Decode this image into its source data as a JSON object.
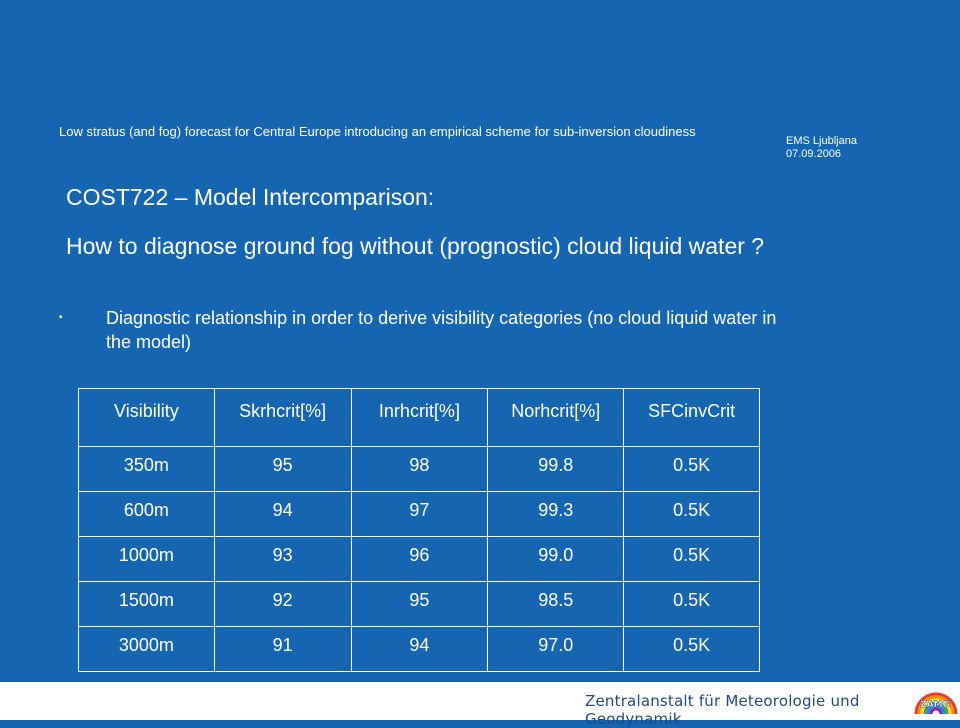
{
  "header": {
    "title": "Low stratus (and fog) forecast for Central Europe introducing an empirical scheme for sub-inversion cloudiness",
    "event_line1": "EMS Ljubljana",
    "event_line2": "07.09.2006"
  },
  "slide": {
    "heading1": "COST722 – Model Intercomparison:",
    "heading2": "How to diagnose ground fog without (prognostic) cloud liquid water ?",
    "bullet": "Diagnostic relationship in order to derive visibility categories (no cloud liquid water in the model)",
    "bullet_marker": "▪"
  },
  "table": {
    "headers": [
      "Visibility",
      "Skrhcrit[%]",
      "Inrhcrit[%]",
      "Norhcrit[%]",
      "SFCinvCrit"
    ],
    "rows": [
      [
        "350m",
        "95",
        "98",
        "99.8",
        "0.5K"
      ],
      [
        "600m",
        "94",
        "97",
        "99.3",
        "0.5K"
      ],
      [
        "1000m",
        "93",
        "96",
        "99.0",
        "0.5K"
      ],
      [
        "1500m",
        "92",
        "95",
        "98.5",
        "0.5K"
      ],
      [
        "3000m",
        "91",
        "94",
        "97.0",
        "0.5K"
      ]
    ]
  },
  "footer": {
    "institute": "Zentralanstalt für Meteorologie und Geodynamik",
    "logo_text": "ZAMG",
    "logo_icon": "rainbow-logo-icon"
  },
  "colors": {
    "background": "#1565b0",
    "text": "#ffffff",
    "footer_text": "#1f4a84"
  }
}
